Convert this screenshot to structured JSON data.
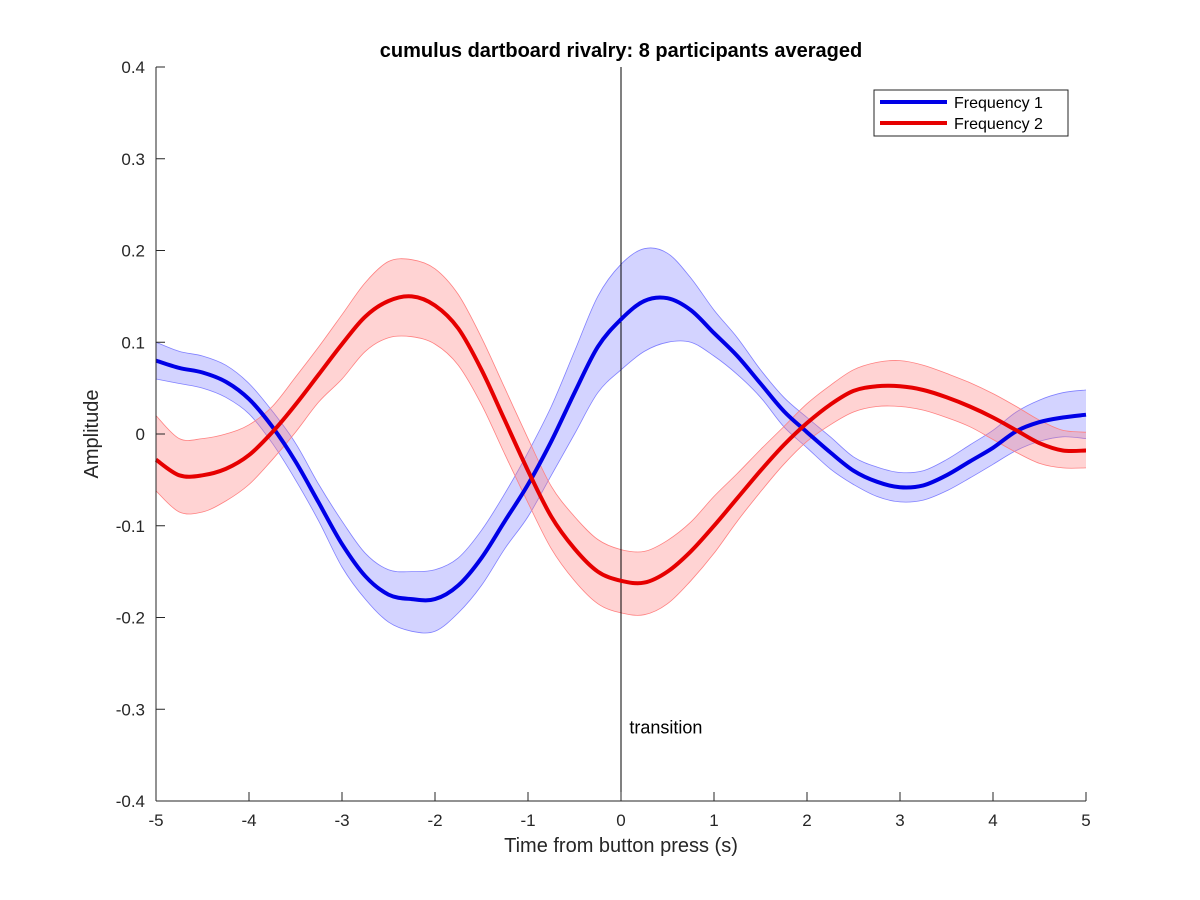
{
  "chart_data": {
    "type": "line",
    "title": "cumulus dartboard rivalry: 8 participants averaged",
    "xlabel": "Time from button press (s)",
    "ylabel": "Amplitude",
    "xlim": [
      -5,
      5
    ],
    "ylim": [
      -0.4,
      0.4
    ],
    "xticks": [
      "-5",
      "-4",
      "-3",
      "-2",
      "-1",
      "0",
      "1",
      "2",
      "3",
      "4",
      "5"
    ],
    "yticks": [
      "-0.4",
      "-0.3",
      "-0.2",
      "-0.1",
      "0",
      "0.1",
      "0.2",
      "0.3",
      "0.4"
    ],
    "grid": false,
    "legend_position": "top-right",
    "annotation": {
      "text": "transition",
      "x": 0.09,
      "y": -0.32
    },
    "vline_x": 0,
    "x": [
      -5,
      -4.75,
      -4.5,
      -4.25,
      -4,
      -3.75,
      -3.5,
      -3.25,
      -3,
      -2.75,
      -2.5,
      -2.25,
      -2,
      -1.75,
      -1.5,
      -1.25,
      -1,
      -0.75,
      -0.5,
      -0.25,
      0,
      0.25,
      0.5,
      0.75,
      1,
      1.25,
      1.5,
      1.75,
      2,
      2.25,
      2.5,
      2.75,
      3,
      3.25,
      3.5,
      3.75,
      4,
      4.25,
      4.5,
      4.75,
      5
    ],
    "series": [
      {
        "name": "Frequency 1",
        "color": "#0000e6",
        "band_color": "#8080ff",
        "values": [
          0.08,
          0.072,
          0.067,
          0.057,
          0.038,
          0.008,
          -0.03,
          -0.075,
          -0.12,
          -0.155,
          -0.175,
          -0.18,
          -0.18,
          -0.165,
          -0.135,
          -0.095,
          -0.055,
          -0.008,
          0.045,
          0.095,
          0.125,
          0.145,
          0.148,
          0.135,
          0.11,
          0.085,
          0.055,
          0.025,
          0.002,
          -0.02,
          -0.04,
          -0.052,
          -0.058,
          -0.056,
          -0.045,
          -0.03,
          -0.015,
          0.003,
          0.013,
          0.018,
          0.021
        ],
        "lower": [
          0.06,
          0.055,
          0.05,
          0.04,
          0.022,
          -0.01,
          -0.05,
          -0.095,
          -0.145,
          -0.18,
          -0.205,
          -0.215,
          -0.215,
          -0.195,
          -0.165,
          -0.125,
          -0.09,
          -0.045,
          0.0,
          0.045,
          0.07,
          0.09,
          0.1,
          0.1,
          0.085,
          0.065,
          0.04,
          0.008,
          -0.015,
          -0.038,
          -0.055,
          -0.068,
          -0.074,
          -0.072,
          -0.062,
          -0.048,
          -0.033,
          -0.018,
          -0.008,
          -0.003,
          -0.005
        ],
        "upper": [
          0.1,
          0.09,
          0.085,
          0.075,
          0.055,
          0.025,
          -0.01,
          -0.055,
          -0.095,
          -0.13,
          -0.148,
          -0.15,
          -0.148,
          -0.135,
          -0.105,
          -0.065,
          -0.02,
          0.03,
          0.09,
          0.15,
          0.185,
          0.202,
          0.197,
          0.17,
          0.135,
          0.105,
          0.07,
          0.04,
          0.018,
          -0.003,
          -0.025,
          -0.036,
          -0.042,
          -0.04,
          -0.028,
          -0.012,
          0.004,
          0.024,
          0.037,
          0.045,
          0.048
        ]
      },
      {
        "name": "Frequency 2",
        "color": "#e60000",
        "band_color": "#ff8080",
        "values": [
          -0.028,
          -0.045,
          -0.045,
          -0.038,
          -0.023,
          0.002,
          0.032,
          0.065,
          0.098,
          0.128,
          0.145,
          0.15,
          0.14,
          0.115,
          0.07,
          0.015,
          -0.04,
          -0.09,
          -0.125,
          -0.15,
          -0.16,
          -0.162,
          -0.15,
          -0.128,
          -0.1,
          -0.07,
          -0.04,
          -0.012,
          0.012,
          0.032,
          0.047,
          0.052,
          0.052,
          0.048,
          0.04,
          0.03,
          0.018,
          0.004,
          -0.01,
          -0.018,
          -0.018
        ],
        "lower": [
          -0.062,
          -0.085,
          -0.085,
          -0.073,
          -0.055,
          -0.028,
          0.002,
          0.035,
          0.06,
          0.09,
          0.105,
          0.106,
          0.098,
          0.075,
          0.032,
          -0.022,
          -0.075,
          -0.125,
          -0.16,
          -0.185,
          -0.195,
          -0.197,
          -0.185,
          -0.16,
          -0.13,
          -0.095,
          -0.063,
          -0.033,
          -0.008,
          0.01,
          0.024,
          0.03,
          0.03,
          0.026,
          0.018,
          0.008,
          -0.006,
          -0.02,
          -0.032,
          -0.037,
          -0.037
        ],
        "upper": [
          0.02,
          -0.005,
          -0.005,
          0.0,
          0.01,
          0.03,
          0.062,
          0.095,
          0.13,
          0.165,
          0.188,
          0.19,
          0.18,
          0.152,
          0.105,
          0.05,
          -0.005,
          -0.057,
          -0.09,
          -0.115,
          -0.126,
          -0.128,
          -0.116,
          -0.096,
          -0.068,
          -0.043,
          -0.017,
          0.008,
          0.033,
          0.053,
          0.07,
          0.078,
          0.08,
          0.075,
          0.066,
          0.056,
          0.044,
          0.03,
          0.015,
          0.004,
          0.002
        ]
      }
    ]
  }
}
